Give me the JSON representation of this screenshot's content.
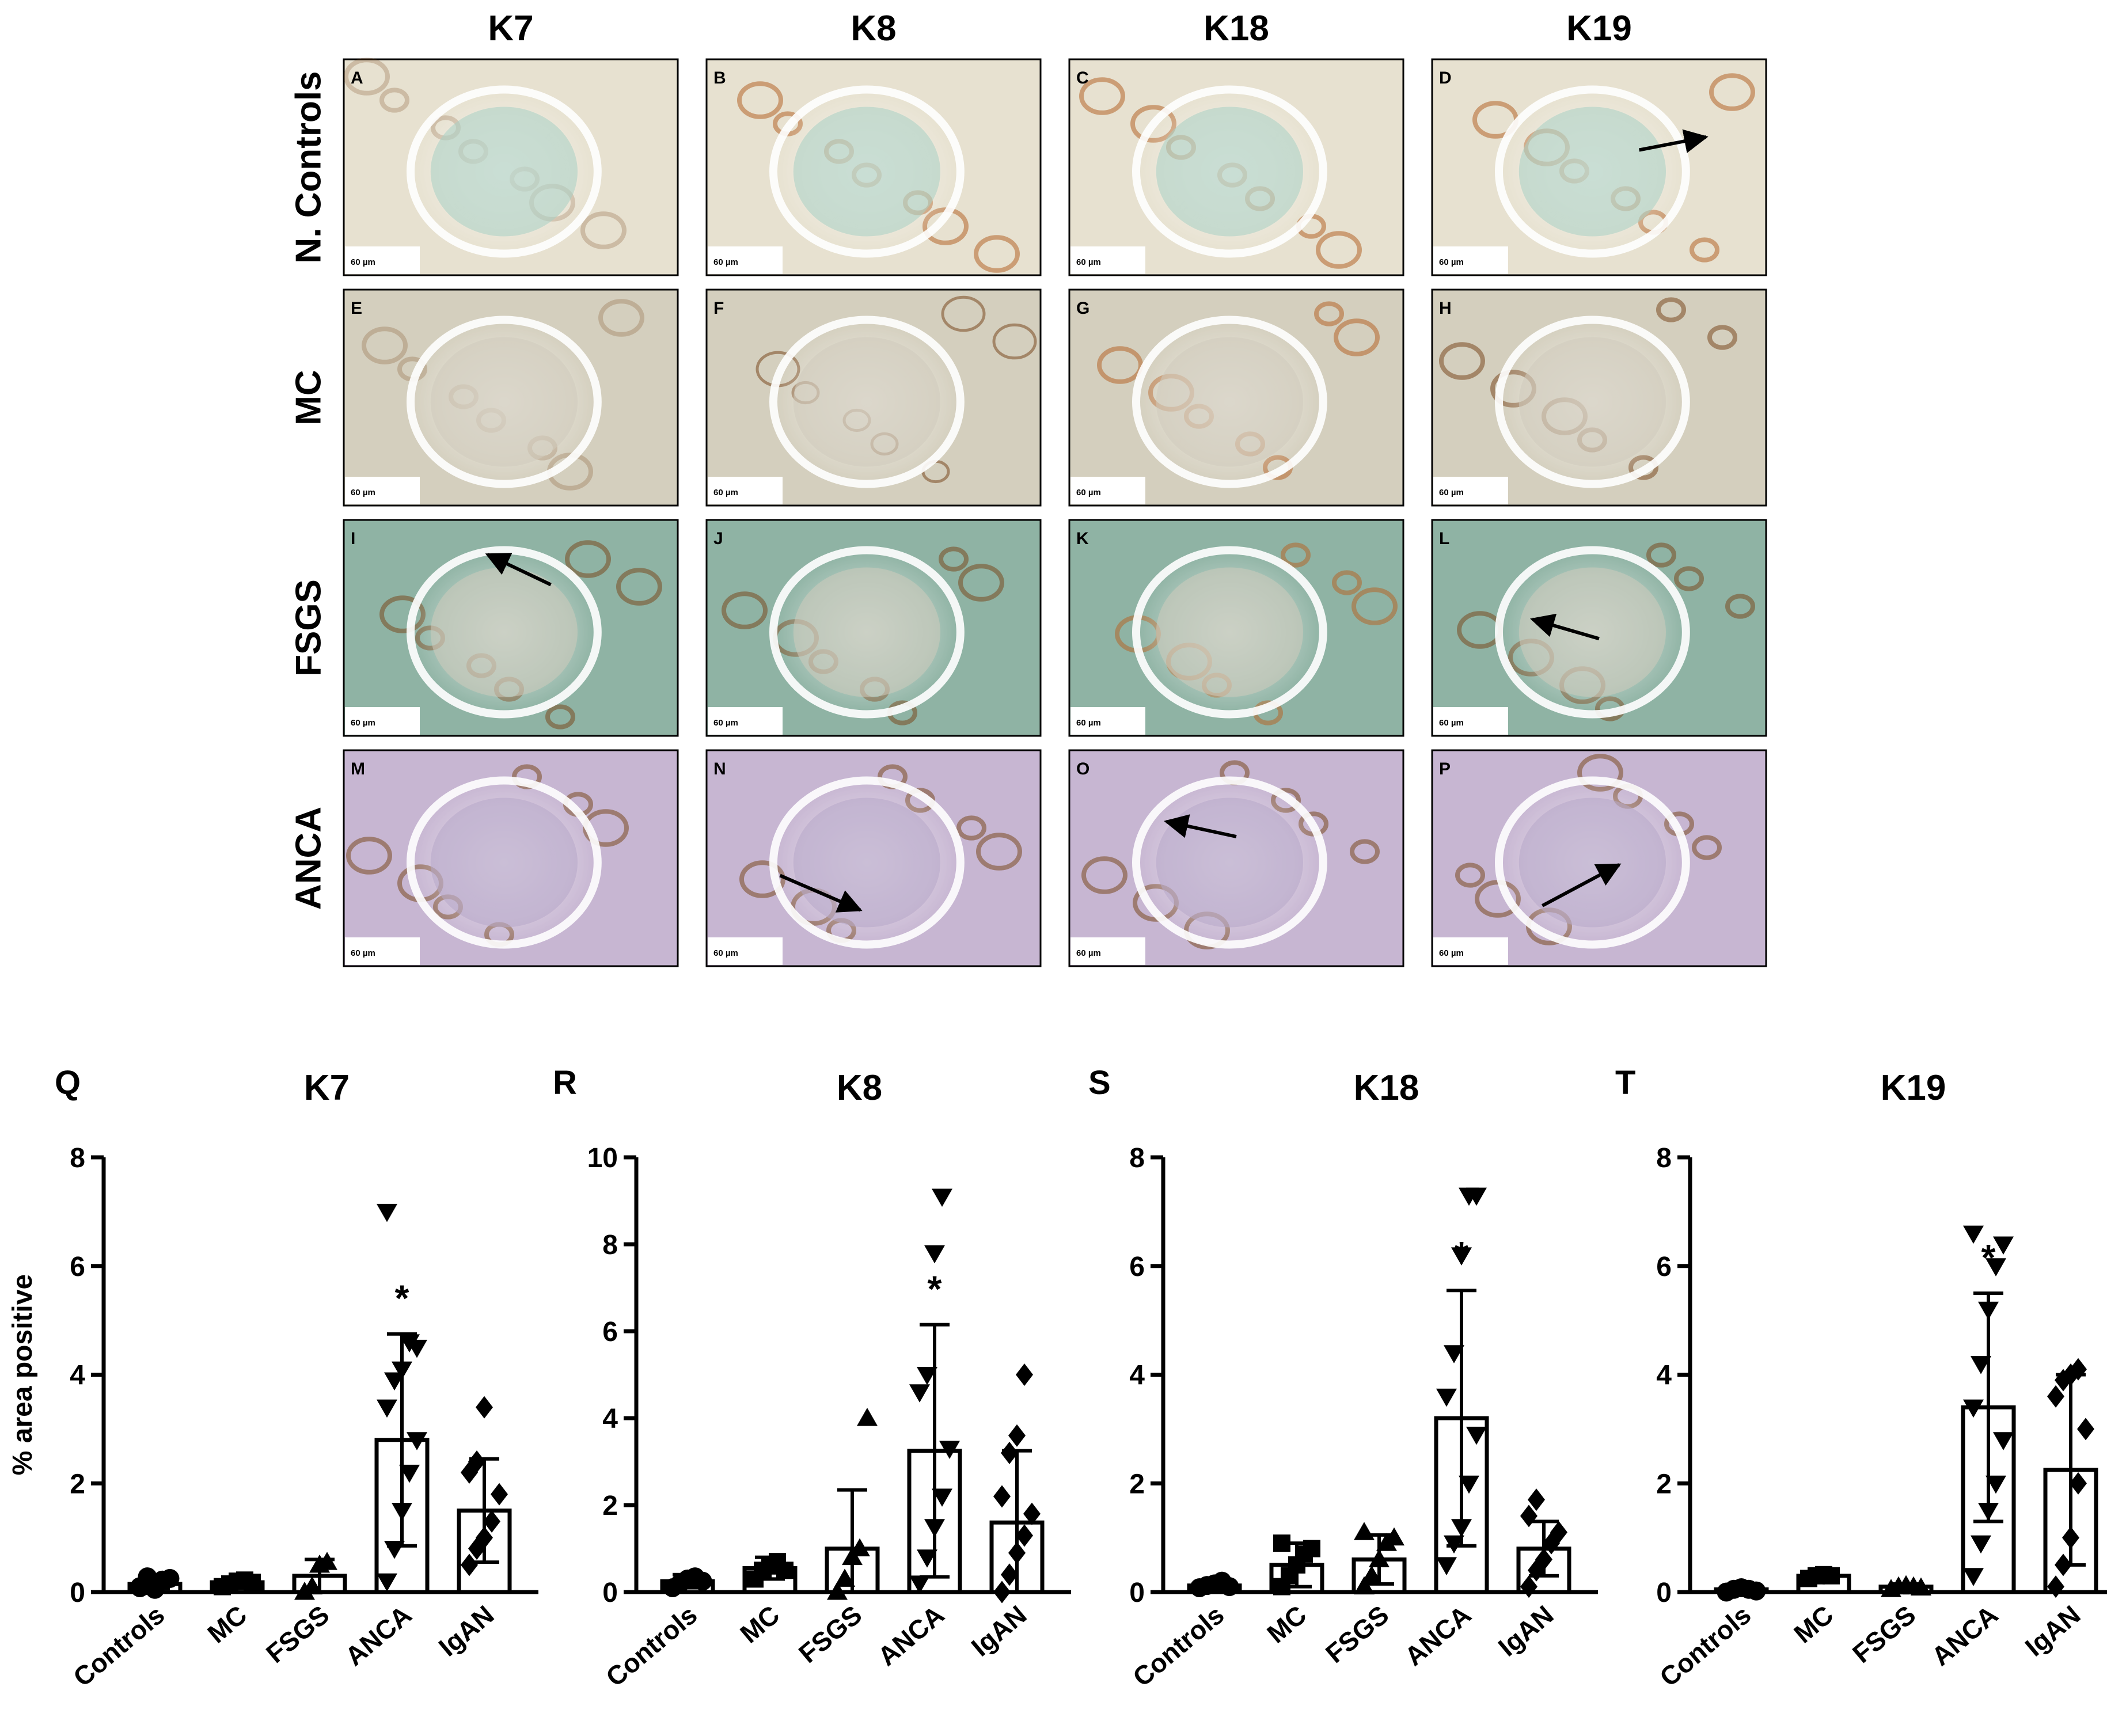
{
  "micrograph": {
    "column_headers": [
      "K7",
      "K8",
      "K18",
      "K19"
    ],
    "row_headers": [
      "N. Controls",
      "MC",
      "FSGS",
      "ANCA"
    ],
    "panel_letters": [
      "A",
      "B",
      "C",
      "D",
      "E",
      "F",
      "G",
      "H",
      "I",
      "J",
      "K",
      "L",
      "M",
      "N",
      "O",
      "P"
    ],
    "scale_bar_label": "60 µm",
    "tone": {
      "N. Controls": "#e7e1d0",
      "MC": "#d4cfbe",
      "FSGS": "#8fb3a4",
      "ANCA": "#c7b6d2"
    },
    "arrows_in_panels": [
      "D",
      "I",
      "L",
      "N",
      "O",
      "P"
    ]
  },
  "chart_data": [
    {
      "panel": "Q",
      "title": "K7",
      "type": "bar",
      "ylabel": "% area positive",
      "categories": [
        "Controls",
        "MC",
        "FSGS",
        "ANCA",
        "IgAN"
      ],
      "markers": [
        "circle",
        "square",
        "triangle-up",
        "triangle-down",
        "diamond"
      ],
      "values": [
        0.15,
        0.18,
        0.3,
        2.8,
        1.5
      ],
      "sd": [
        0.08,
        0.06,
        0.3,
        1.95,
        0.95
      ],
      "points": [
        [
          0.08,
          0.12,
          0.18,
          0.22,
          0.25,
          0.1,
          0.28,
          0.05
        ],
        [
          0.1,
          0.15,
          0.2,
          0.22,
          0.18
        ],
        [
          0.0,
          0.1,
          0.5,
          0.55
        ],
        [
          0.2,
          0.8,
          1.5,
          2.2,
          2.8,
          3.4,
          3.9,
          4.1,
          4.6,
          4.5,
          7.0
        ],
        [
          0.5,
          0.8,
          1.0,
          1.3,
          1.8,
          2.2,
          2.4,
          3.4
        ]
      ],
      "ylim": [
        0,
        8
      ],
      "yticks": [
        0,
        2,
        4,
        6,
        8
      ],
      "significance": [
        "",
        "",
        "",
        "*",
        ""
      ]
    },
    {
      "panel": "R",
      "title": "K8",
      "type": "bar",
      "ylabel": "",
      "categories": [
        "Controls",
        "MC",
        "FSGS",
        "ANCA",
        "IgAN"
      ],
      "markers": [
        "circle",
        "square",
        "triangle-up",
        "triangle-down",
        "diamond"
      ],
      "values": [
        0.25,
        0.55,
        1.0,
        3.25,
        1.6
      ],
      "sd": [
        0.15,
        0.25,
        1.35,
        2.9,
        1.65
      ],
      "points": [
        [
          0.1,
          0.2,
          0.3,
          0.35,
          0.25
        ],
        [
          0.3,
          0.5,
          0.6,
          0.7,
          0.5
        ],
        [
          0.0,
          0.3,
          0.8,
          1.0,
          4.0
        ],
        [
          0.2,
          0.8,
          1.5,
          2.2,
          3.3,
          4.6,
          5.0,
          7.8,
          9.1
        ],
        [
          0.0,
          0.4,
          0.9,
          1.3,
          1.8,
          2.2,
          3.2,
          3.6,
          5.0
        ]
      ],
      "ylim": [
        0,
        10
      ],
      "yticks": [
        0,
        2,
        4,
        6,
        8,
        10
      ],
      "significance": [
        "",
        "",
        "",
        "*",
        ""
      ]
    },
    {
      "panel": "S",
      "title": "K18",
      "type": "bar",
      "ylabel": "",
      "categories": [
        "Controls",
        "MC",
        "FSGS",
        "ANCA",
        "IgAN"
      ],
      "markers": [
        "circle",
        "square",
        "triangle-up",
        "triangle-down",
        "diamond"
      ],
      "values": [
        0.12,
        0.5,
        0.6,
        3.2,
        0.8
      ],
      "sd": [
        0.06,
        0.4,
        0.45,
        2.35,
        0.5
      ],
      "points": [
        [
          0.08,
          0.12,
          0.15,
          0.2,
          0.1
        ],
        [
          0.1,
          0.3,
          0.5,
          0.7,
          0.8,
          0.9
        ],
        [
          0.1,
          0.3,
          0.6,
          0.9,
          1.0,
          1.1
        ],
        [
          0.5,
          0.9,
          1.2,
          2.0,
          2.9,
          3.6,
          4.4,
          6.2,
          7.3,
          7.3
        ],
        [
          0.1,
          0.4,
          0.6,
          0.9,
          1.1,
          1.4,
          1.7
        ]
      ],
      "ylim": [
        0,
        8
      ],
      "yticks": [
        0,
        2,
        4,
        6,
        8
      ],
      "significance": [
        "",
        "",
        "",
        "*",
        ""
      ]
    },
    {
      "panel": "T",
      "title": "K19",
      "type": "bar",
      "ylabel": "",
      "categories": [
        "Controls",
        "MC",
        "FSGS",
        "ANCA",
        "IgAN"
      ],
      "markers": [
        "circle",
        "square",
        "triangle-up",
        "triangle-down",
        "diamond"
      ],
      "values": [
        0.05,
        0.3,
        0.1,
        3.4,
        2.25
      ],
      "sd": [
        0.03,
        0.05,
        0.05,
        2.1,
        1.75
      ],
      "points": [
        [
          0.0,
          0.05,
          0.08,
          0.05,
          0.02
        ],
        [
          0.25,
          0.3,
          0.32,
          0.3
        ],
        [
          0.05,
          0.1,
          0.12,
          0.1,
          0.08
        ],
        [
          0.3,
          0.9,
          1.5,
          2.0,
          2.8,
          3.4,
          4.2,
          5.2,
          6.0,
          6.4,
          6.6
        ],
        [
          0.1,
          0.5,
          1.0,
          2.0,
          3.0,
          3.6,
          3.9,
          4.0,
          4.1
        ]
      ],
      "ylim": [
        0,
        8
      ],
      "yticks": [
        0,
        2,
        4,
        6,
        8
      ],
      "significance": [
        "",
        "",
        "",
        "*",
        ""
      ]
    }
  ]
}
